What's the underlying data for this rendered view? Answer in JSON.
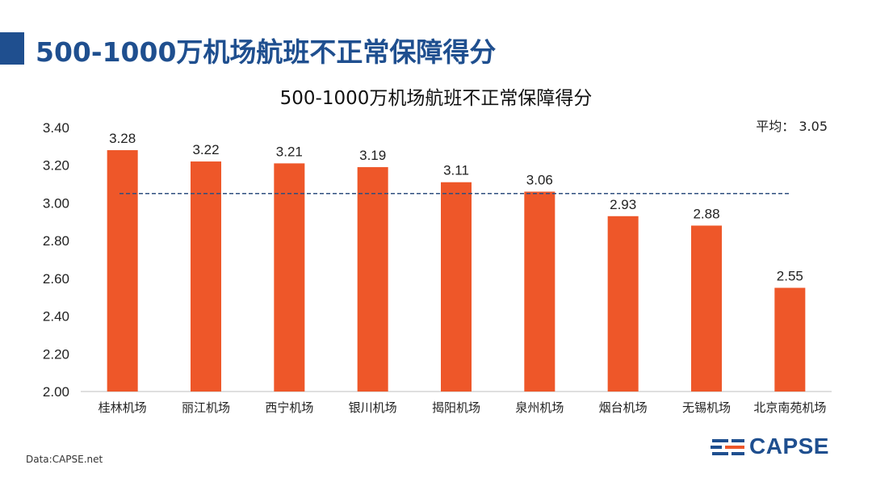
{
  "slide": {
    "title": "500-1000万机场航班不正常保障得分",
    "source": "Data:CAPSE.net",
    "logo_text": "CAPSE"
  },
  "colors": {
    "bar": "#ee5729",
    "average_line": "#2f4f7f",
    "title_blue": "#1f4f8f"
  },
  "chart_data": {
    "type": "bar",
    "title": "500-1000万机场航班不正常保障得分",
    "categories": [
      "桂林机场",
      "丽江机场",
      "西宁机场",
      "银川机场",
      "揭阳机场",
      "泉州机场",
      "烟台机场",
      "无锡机场",
      "北京南苑机场"
    ],
    "values": [
      3.28,
      3.22,
      3.21,
      3.19,
      3.11,
      3.06,
      2.93,
      2.88,
      2.55
    ],
    "value_labels": [
      "3.28",
      "3.22",
      "3.21",
      "3.19",
      "3.11",
      "3.06",
      "2.93",
      "2.88",
      "2.55"
    ],
    "ylim": [
      2.0,
      3.4
    ],
    "yticks": [
      "2.00",
      "2.20",
      "2.40",
      "2.60",
      "2.80",
      "3.00",
      "3.20",
      "3.40"
    ],
    "average": {
      "label": "平均：",
      "value": 3.05,
      "value_label": "3.05"
    },
    "xlabel": "",
    "ylabel": "",
    "grid": false
  }
}
